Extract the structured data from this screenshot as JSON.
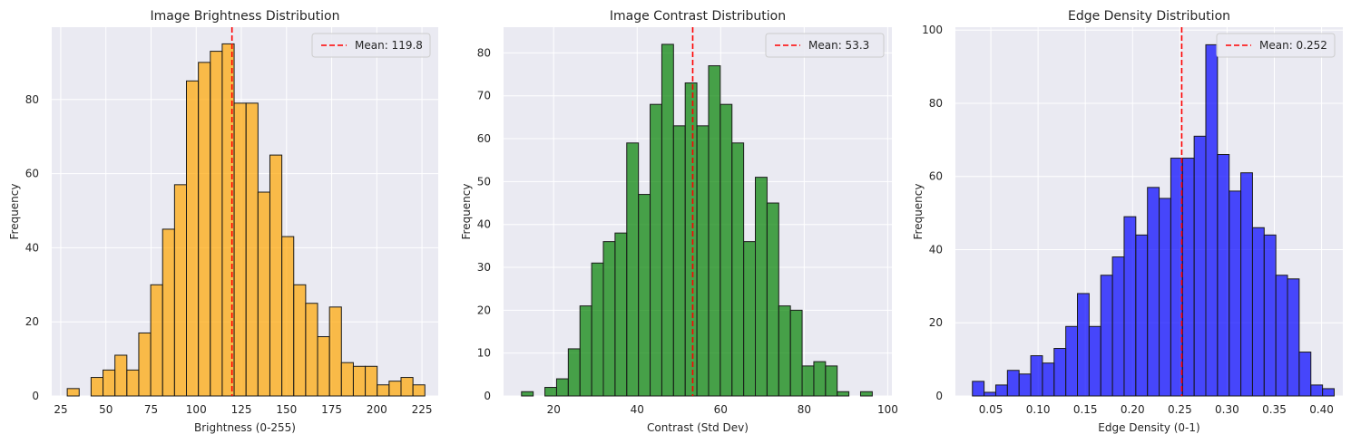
{
  "chart_data": [
    {
      "type": "bar",
      "title": "Image Brightness Distribution",
      "xlabel": "Brightness (0-255)",
      "ylabel": "Frequency",
      "color": "#FFA500",
      "bin_start": 28.6,
      "bin_width": 6.6,
      "values": [
        2,
        0,
        5,
        7,
        11,
        7,
        17,
        30,
        45,
        57,
        85,
        90,
        93,
        95,
        79,
        79,
        55,
        65,
        43,
        30,
        25,
        16,
        24,
        9,
        8,
        8,
        3,
        4,
        5,
        3
      ],
      "xlim": [
        20,
        234
      ],
      "ylim": [
        0,
        99.5
      ],
      "xticks": [
        25,
        50,
        75,
        100,
        125,
        150,
        175,
        200,
        225
      ],
      "yticks": [
        0,
        20,
        40,
        60,
        80
      ],
      "mean": 119.8,
      "mean_label": "Mean: 119.8",
      "legend_position": "upper right",
      "grid": true
    },
    {
      "type": "bar",
      "title": "Image Contrast Distribution",
      "xlabel": "Contrast (Std Dev)",
      "ylabel": "Frequency",
      "color": "#008000",
      "bin_start": 12.3,
      "bin_width": 2.8,
      "values": [
        1,
        0,
        2,
        4,
        11,
        21,
        31,
        36,
        38,
        59,
        47,
        68,
        82,
        63,
        73,
        63,
        77,
        68,
        59,
        36,
        51,
        45,
        21,
        20,
        7,
        8,
        7,
        1,
        0,
        1
      ],
      "xlim": [
        8,
        101
      ],
      "ylim": [
        0,
        86
      ],
      "xticks": [
        20,
        40,
        60,
        80,
        100
      ],
      "yticks": [
        0,
        10,
        20,
        30,
        40,
        50,
        60,
        70,
        80
      ],
      "mean": 53.3,
      "mean_label": "Mean: 53.3",
      "legend_position": "upper right",
      "grid": true
    },
    {
      "type": "bar",
      "title": "Edge Density Distribution",
      "xlabel": "Edge Density (0-1)",
      "ylabel": "Frequency",
      "color": "#0000FF",
      "bin_start": 0.0305,
      "bin_width": 0.01235,
      "values": [
        4,
        1,
        3,
        7,
        6,
        11,
        9,
        13,
        19,
        28,
        19,
        33,
        38,
        49,
        44,
        57,
        54,
        65,
        65,
        71,
        96,
        66,
        56,
        61,
        46,
        44,
        33,
        32,
        12,
        3,
        2
      ],
      "xlim": [
        0.0125,
        0.4225
      ],
      "ylim": [
        0,
        100.8
      ],
      "xticks": [
        0.05,
        0.1,
        0.15,
        0.2,
        0.25,
        0.3,
        0.35,
        0.4
      ],
      "xtick_labels": [
        "0.05",
        "0.10",
        "0.15",
        "0.20",
        "0.25",
        "0.30",
        "0.35",
        "0.40"
      ],
      "yticks": [
        0,
        20,
        40,
        60,
        80,
        100
      ],
      "mean": 0.252,
      "mean_label": "Mean: 0.252",
      "legend_position": "upper right",
      "grid": true
    }
  ]
}
